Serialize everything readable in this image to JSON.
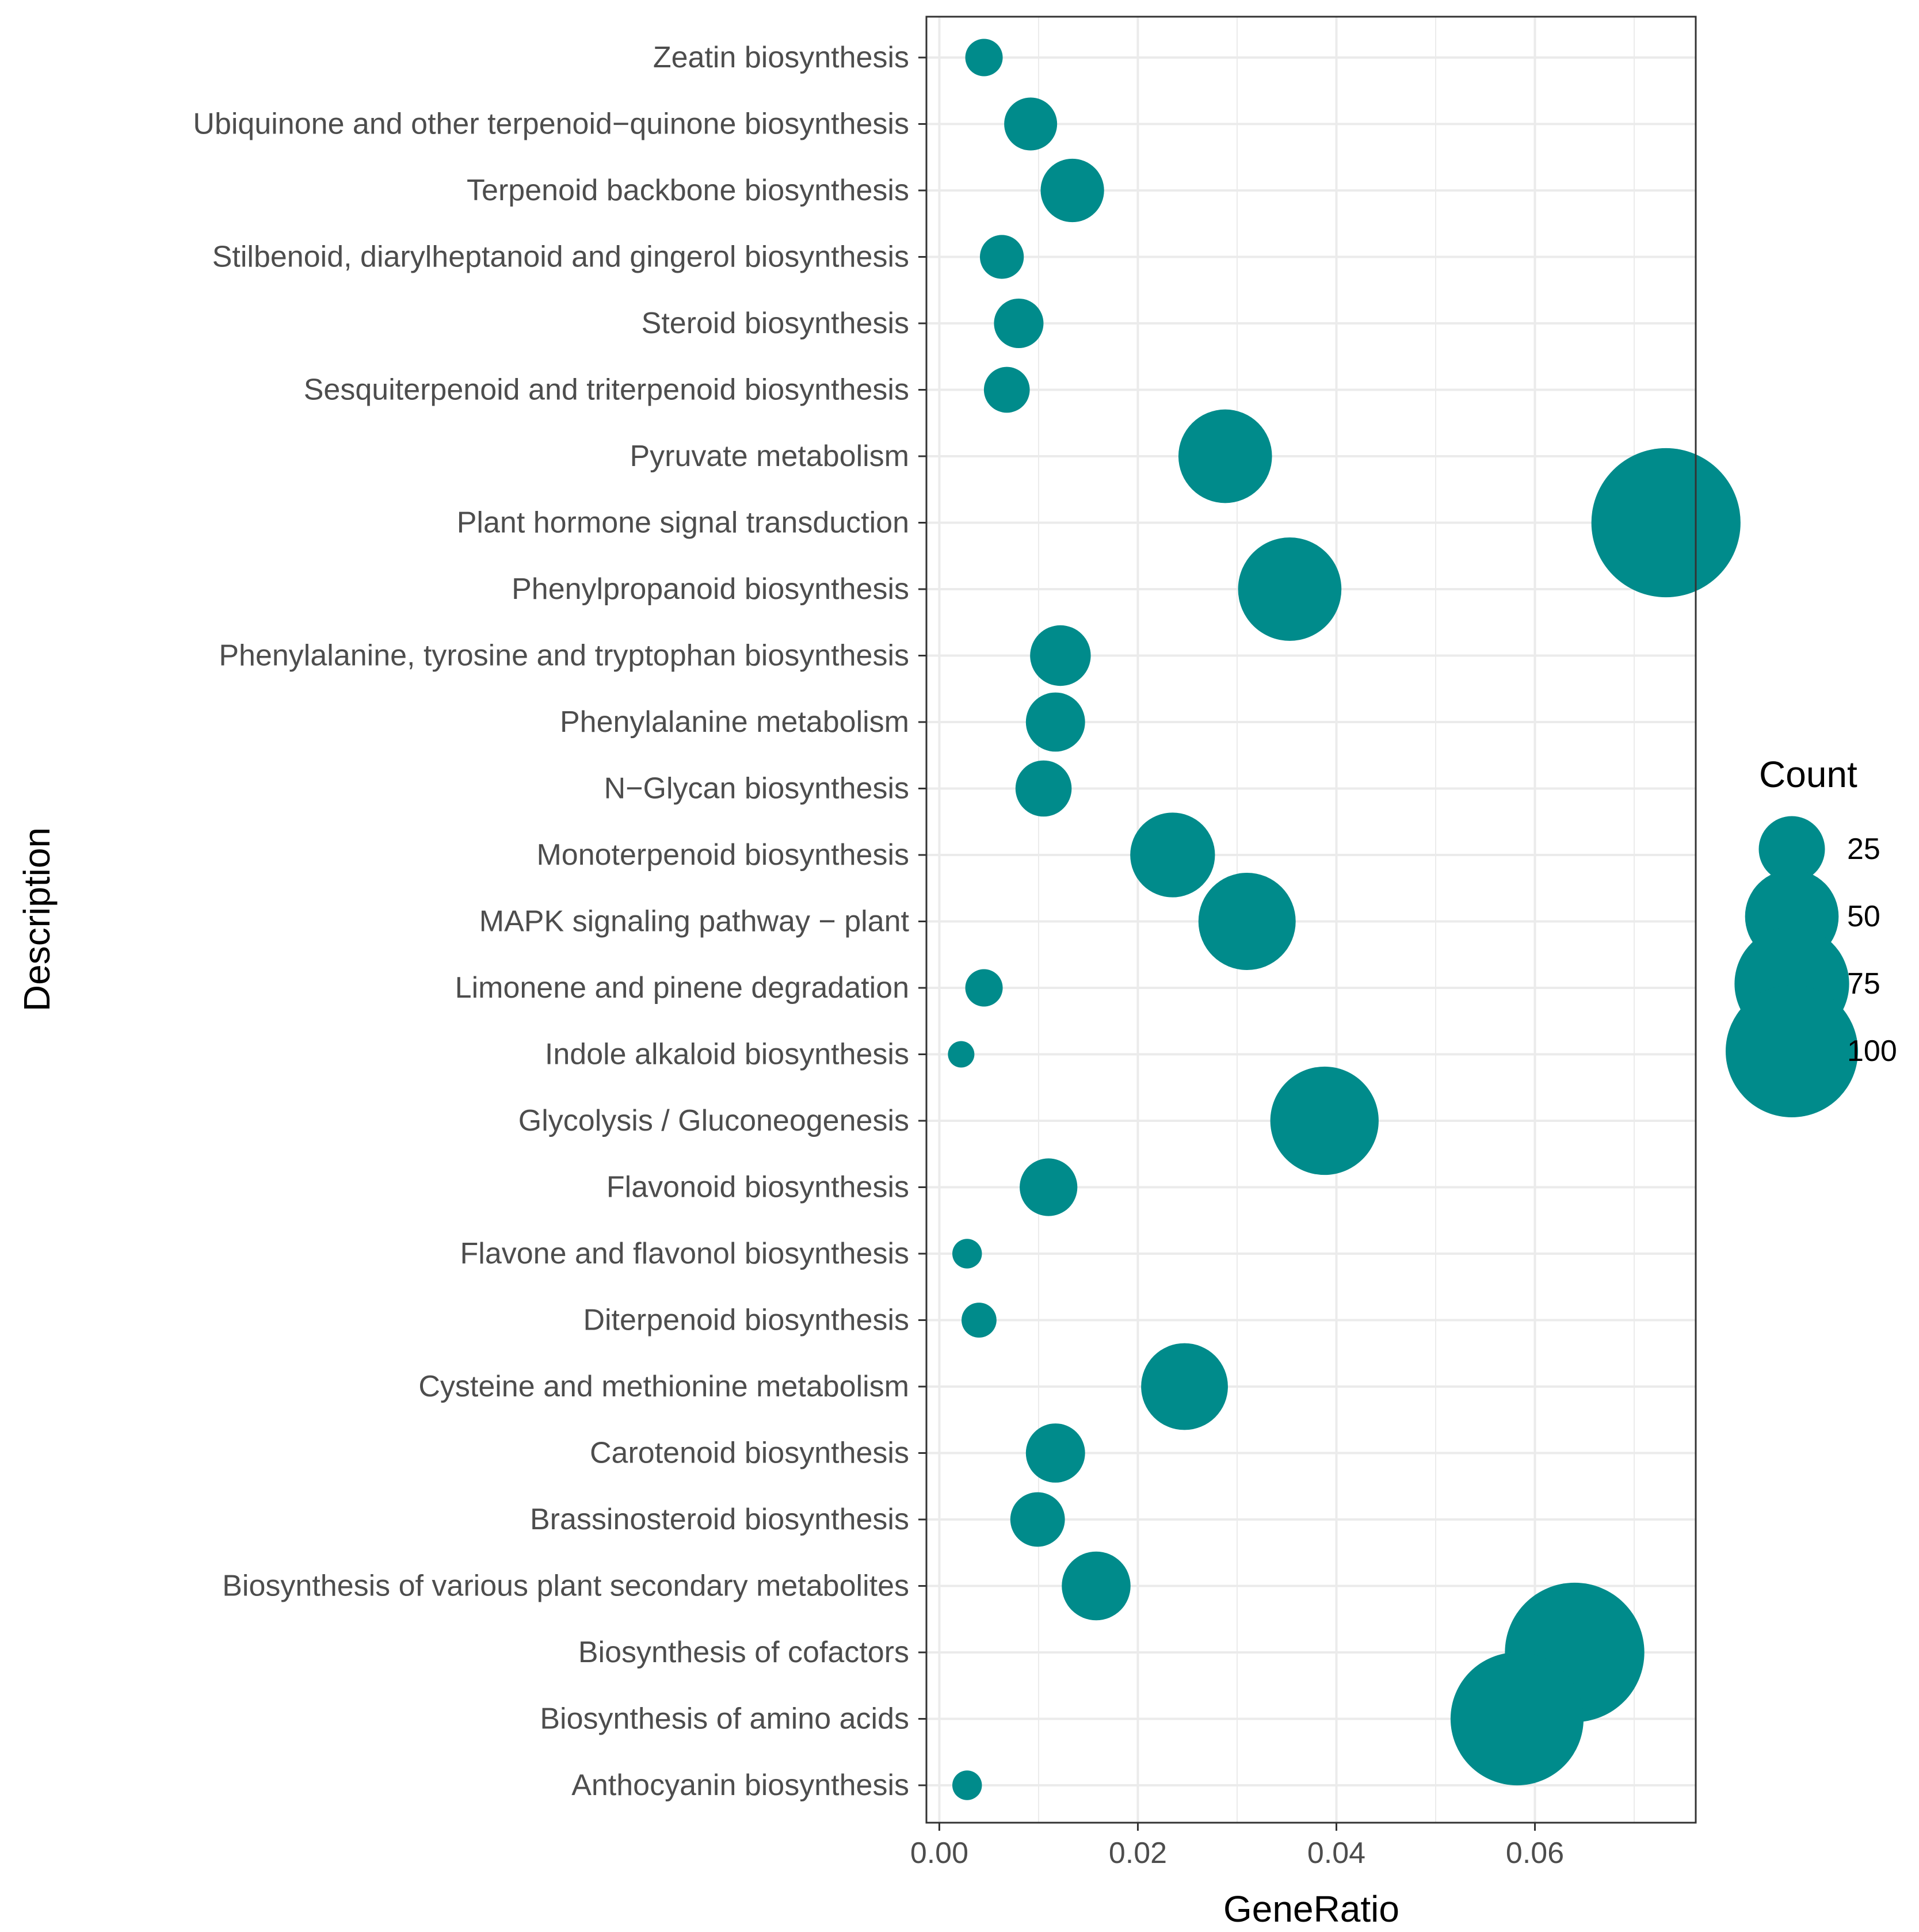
{
  "chart_data": {
    "type": "scatter",
    "title": "",
    "xlabel": "GeneRatio",
    "ylabel": "Description",
    "xlim": [
      -0.0013,
      0.0762
    ],
    "x_ticks": [
      0.0,
      0.02,
      0.04,
      0.06
    ],
    "x_tick_labels": [
      "0.00",
      "0.02",
      "0.04",
      "0.06"
    ],
    "grid": true,
    "point_color": "#008B8B",
    "categories": [
      "Zeatin biosynthesis",
      "Ubiquinone and other terpenoid−quinone biosynthesis",
      "Terpenoid backbone biosynthesis",
      "Stilbenoid, diarylheptanoid and gingerol biosynthesis",
      "Steroid biosynthesis",
      "Sesquiterpenoid and triterpenoid biosynthesis",
      "Pyruvate metabolism",
      "Plant hormone signal transduction",
      "Phenylpropanoid biosynthesis",
      "Phenylalanine, tyrosine and tryptophan biosynthesis",
      "Phenylalanine metabolism",
      "N−Glycan biosynthesis",
      "Monoterpenoid biosynthesis",
      "MAPK signaling pathway − plant",
      "Limonene and pinene degradation",
      "Indole alkaloid biosynthesis",
      "Glycolysis / Gluconeogenesis",
      "Flavonoid biosynthesis",
      "Flavone and flavonol biosynthesis",
      "Diterpenoid biosynthesis",
      "Cysteine and methionine metabolism",
      "Carotenoid biosynthesis",
      "Brassinosteroid biosynthesis",
      "Biosynthesis of various plant secondary metabolites",
      "Biosynthesis of cofactors",
      "Biosynthesis of amino acids",
      "Anthocyanin biosynthesis"
    ],
    "gene_ratio": [
      0.0045,
      0.0092,
      0.0134,
      0.0063,
      0.008,
      0.0068,
      0.0288,
      0.0732,
      0.0353,
      0.0122,
      0.0117,
      0.0105,
      0.0235,
      0.031,
      0.0045,
      0.0022,
      0.0388,
      0.011,
      0.0028,
      0.004,
      0.0247,
      0.0117,
      0.0099,
      0.0158,
      0.064,
      0.0582,
      0.0028
    ],
    "count": [
      8,
      16,
      23,
      11,
      14,
      12,
      50,
      127,
      61,
      21,
      20,
      18,
      41,
      54,
      8,
      4,
      67,
      19,
      5,
      7,
      43,
      20,
      17,
      27,
      111,
      101,
      5
    ],
    "legend": {
      "title": "Count",
      "values": [
        25,
        50,
        75,
        100
      ],
      "labels": [
        "25",
        "50",
        "75",
        "100"
      ],
      "position": "right"
    }
  }
}
